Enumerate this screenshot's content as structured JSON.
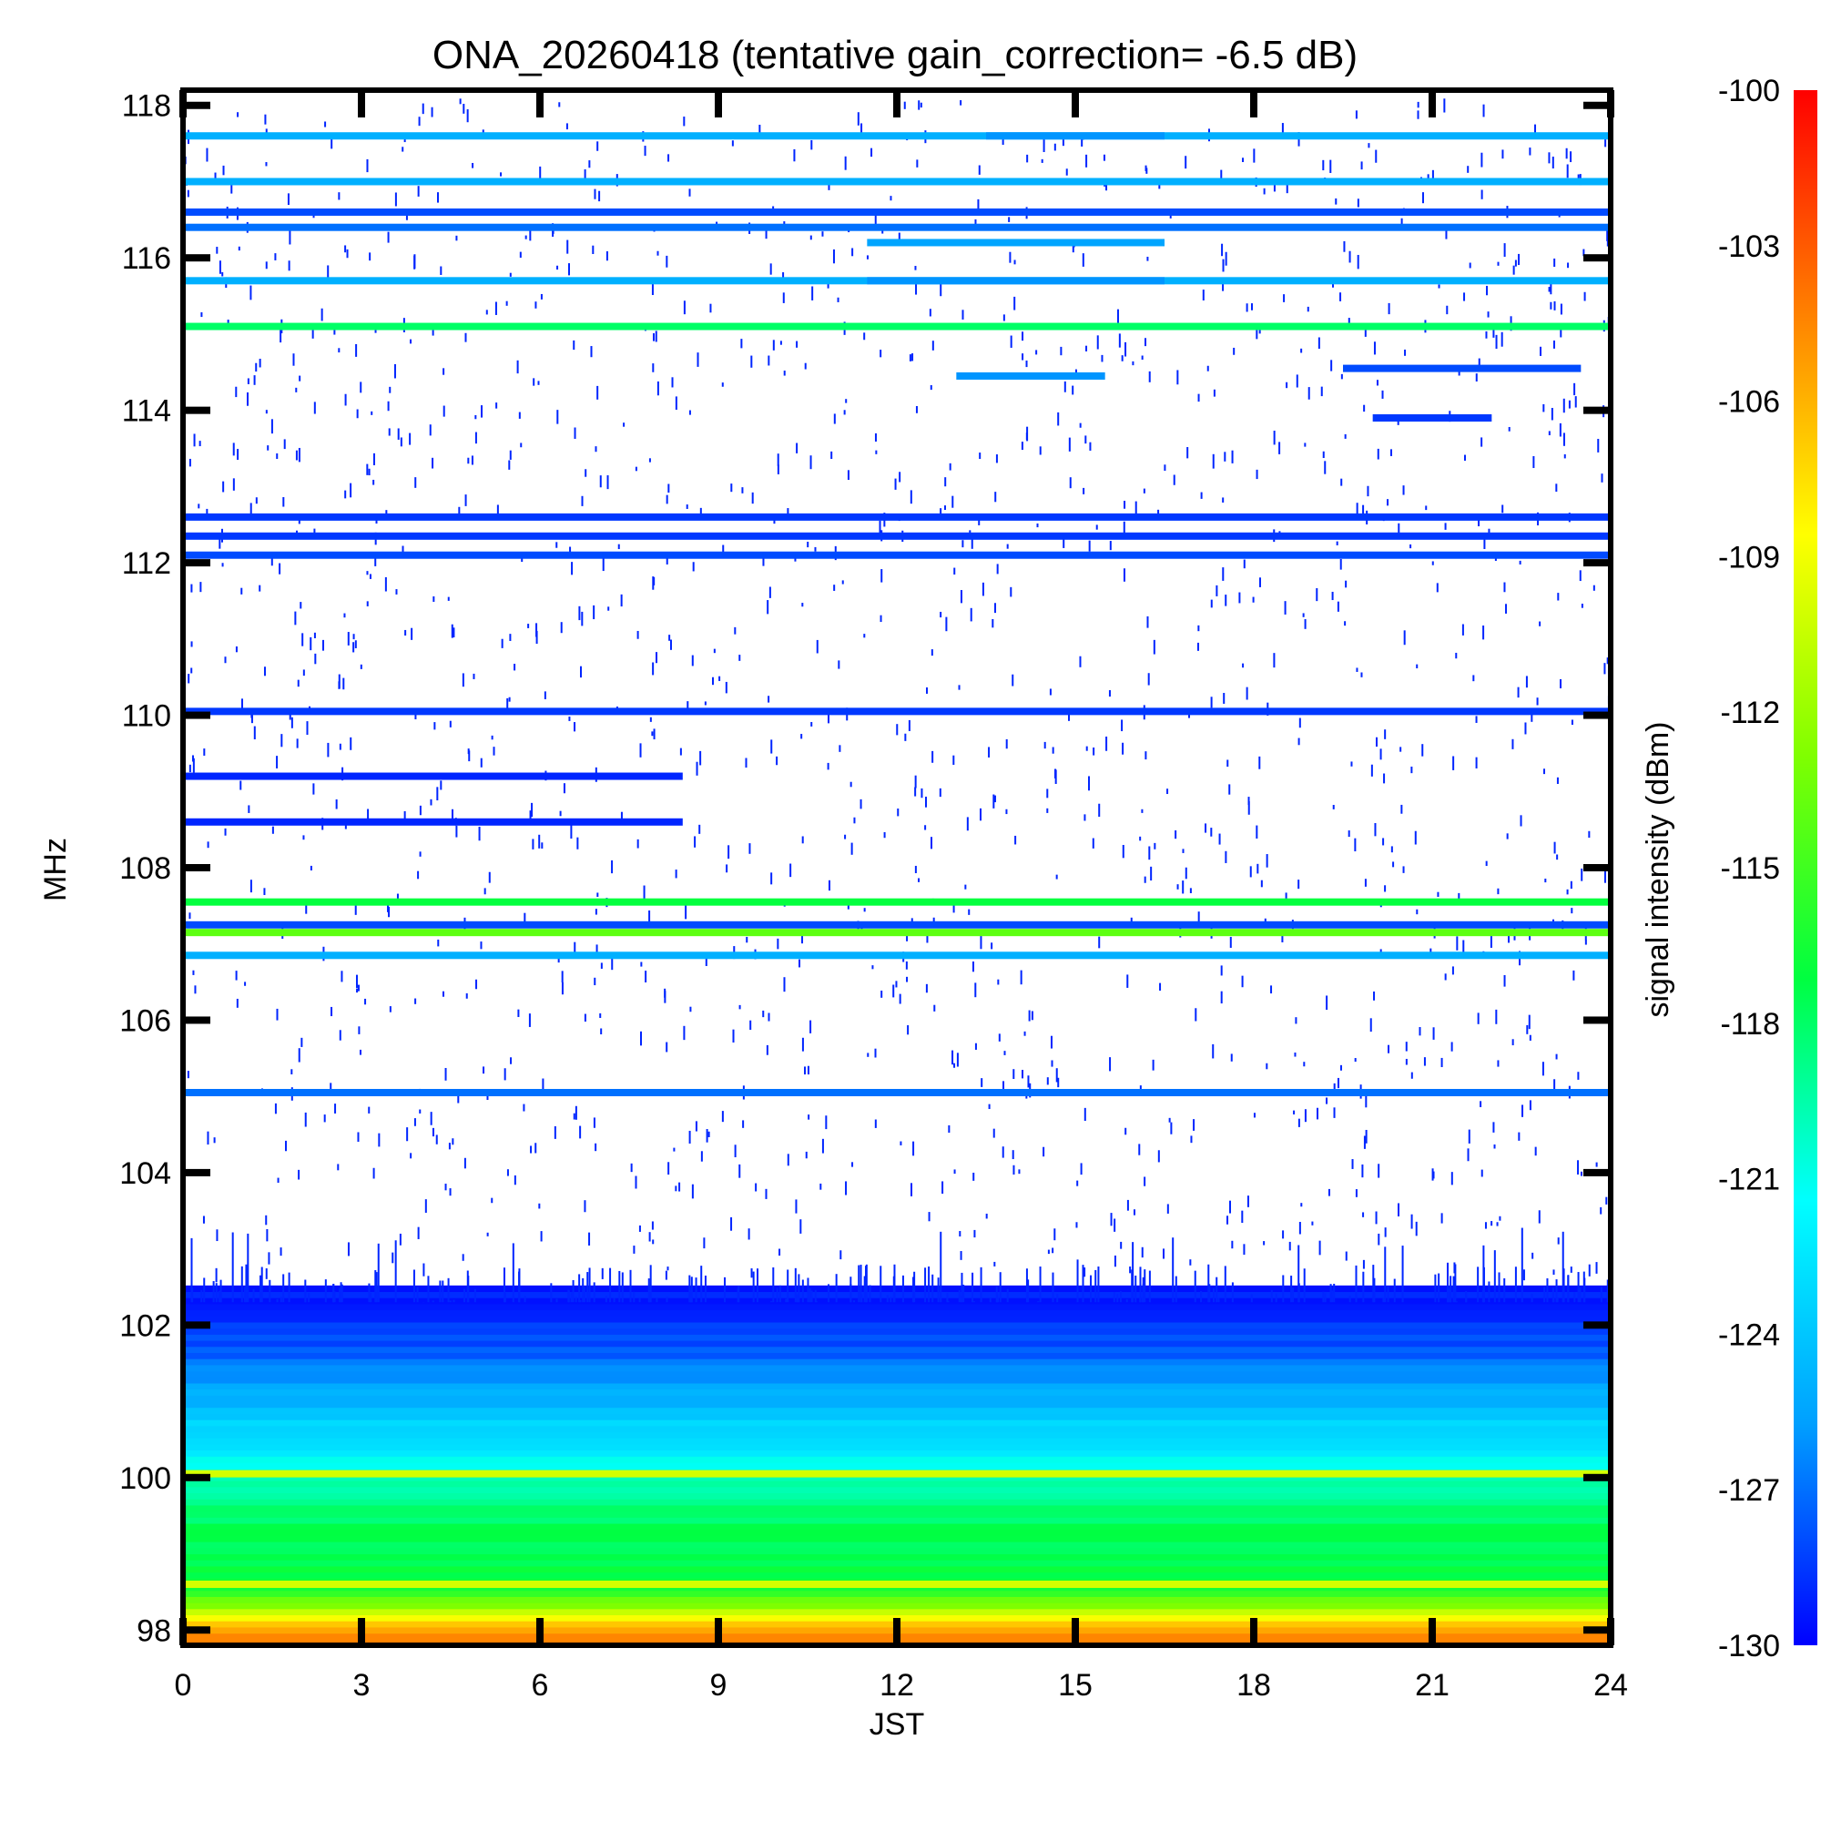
{
  "chart_data": {
    "type": "heatmap",
    "title": "ONA_20260418 (tentative gain_correction= -6.5 dB)",
    "xlabel": "JST",
    "ylabel": "MHz",
    "colorbar_label": "signal intensity (dBm)",
    "xlim": [
      0,
      24
    ],
    "ylim": [
      97.8,
      118.2
    ],
    "xticks": [
      "0",
      "3",
      "6",
      "9",
      "12",
      "15",
      "18",
      "21",
      "24"
    ],
    "yticks": [
      "98",
      "100",
      "102",
      "104",
      "106",
      "108",
      "110",
      "112",
      "114",
      "116",
      "118"
    ],
    "colorbar_range": [
      -130,
      -100
    ],
    "colorbar_ticks": [
      "-100",
      "-103",
      "-106",
      "-109",
      "-112",
      "-115",
      "-118",
      "-121",
      "-124",
      "-127",
      "-130"
    ],
    "colormap": "rainbow",
    "colormap_stops": [
      "#0000ff",
      "#00a0ff",
      "#00ffff",
      "#00ff40",
      "#7fff00",
      "#ffff00",
      "#ff8000",
      "#ff0000"
    ],
    "continuous_bands": [
      {
        "freq": 117.6,
        "level": -125.0
      },
      {
        "freq": 117.0,
        "level": -125.0
      },
      {
        "freq": 116.6,
        "level": -128.0
      },
      {
        "freq": 116.4,
        "level": -127.0
      },
      {
        "freq": 115.7,
        "level": -125.0
      },
      {
        "freq": 115.1,
        "level": -118.0
      },
      {
        "freq": 112.6,
        "level": -128.5
      },
      {
        "freq": 112.35,
        "level": -128.5
      },
      {
        "freq": 112.1,
        "level": -128.0
      },
      {
        "freq": 110.05,
        "level": -128.5
      },
      {
        "freq": 107.55,
        "level": -117.0
      },
      {
        "freq": 107.25,
        "level": -128.0
      },
      {
        "freq": 107.15,
        "level": -114.0
      },
      {
        "freq": 106.85,
        "level": -125.0
      },
      {
        "freq": 105.05,
        "level": -127.0
      },
      {
        "freq": 100.05,
        "level": -110.0
      },
      {
        "freq": 98.6,
        "level": -110.0
      },
      {
        "freq": 97.9,
        "level": -104.5
      }
    ],
    "partial_bands": [
      {
        "freq": 109.2,
        "start": 0,
        "end": 8.4,
        "level": -129.0
      },
      {
        "freq": 108.6,
        "start": 0,
        "end": 8.4,
        "level": -129.0
      },
      {
        "freq": 117.6,
        "start": 13.5,
        "end": 16.5,
        "level": -126.0
      },
      {
        "freq": 116.2,
        "start": 11.5,
        "end": 16.5,
        "level": -125.5
      },
      {
        "freq": 115.7,
        "start": 11.5,
        "end": 16.5,
        "level": -126.0
      },
      {
        "freq": 114.45,
        "start": 13,
        "end": 15.5,
        "level": -126.0
      },
      {
        "freq": 114.55,
        "start": 19.5,
        "end": 23.5,
        "level": -128.0
      },
      {
        "freq": 113.9,
        "start": 20,
        "end": 22,
        "level": -128.5
      }
    ],
    "noise_floor": {
      "freq_range": [
        97.8,
        102.5
      ],
      "level_profile": [
        {
          "freq": 97.9,
          "level": -104.5
        },
        {
          "freq": 98.5,
          "level": -117.0
        },
        {
          "freq": 99.5,
          "level": -118.0
        },
        {
          "freq": 100.5,
          "level": -123.0
        },
        {
          "freq": 101.5,
          "level": -127.0
        },
        {
          "freq": 102.3,
          "level": -129.5
        }
      ]
    },
    "sporadic_region": {
      "freq_range": [
        102.5,
        118.2
      ],
      "typical_level": -129.0
    },
    "grid": false,
    "legend": "colorbar-right"
  }
}
